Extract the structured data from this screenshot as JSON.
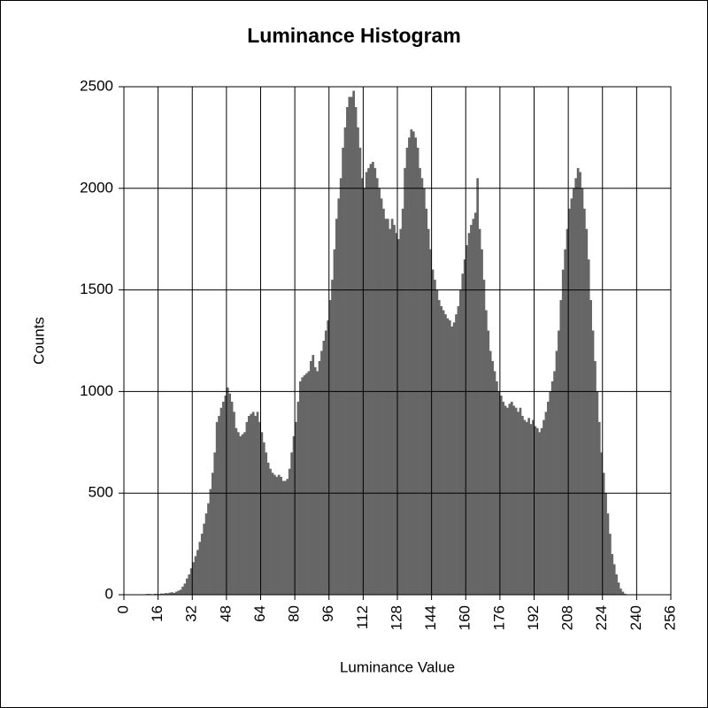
{
  "chart_data": {
    "type": "histogram",
    "title": "Luminance Histogram",
    "x_label": "Luminance Value",
    "y_label": "Counts",
    "bins": [
      0,
      1,
      2,
      3,
      4,
      5,
      6,
      7,
      8,
      9,
      10,
      11,
      12,
      13,
      14,
      15,
      16,
      17,
      18,
      19,
      20,
      21,
      22,
      23,
      24,
      25,
      26,
      27,
      28,
      29,
      30,
      31,
      32,
      33,
      34,
      35,
      36,
      37,
      38,
      39,
      40,
      41,
      42,
      43,
      44,
      45,
      46,
      47,
      48,
      49,
      50,
      51,
      52,
      53,
      54,
      55,
      56,
      57,
      58,
      59,
      60,
      61,
      62,
      63,
      64,
      65,
      66,
      67,
      68,
      69,
      70,
      71,
      72,
      73,
      74,
      75,
      76,
      77,
      78,
      79,
      80,
      81,
      82,
      83,
      84,
      85,
      86,
      87,
      88,
      89,
      90,
      91,
      92,
      93,
      94,
      95,
      96,
      97,
      98,
      99,
      100,
      101,
      102,
      103,
      104,
      105,
      106,
      107,
      108,
      109,
      110,
      111,
      112,
      113,
      114,
      115,
      116,
      117,
      118,
      119,
      120,
      121,
      122,
      123,
      124,
      125,
      126,
      127,
      128,
      129,
      130,
      131,
      132,
      133,
      134,
      135,
      136,
      137,
      138,
      139,
      140,
      141,
      142,
      143,
      144,
      145,
      146,
      147,
      148,
      149,
      150,
      151,
      152,
      153,
      154,
      155,
      156,
      157,
      158,
      159,
      160,
      161,
      162,
      163,
      164,
      165,
      166,
      167,
      168,
      169,
      170,
      171,
      172,
      173,
      174,
      175,
      176,
      177,
      178,
      179,
      180,
      181,
      182,
      183,
      184,
      185,
      186,
      187,
      188,
      189,
      190,
      191,
      192,
      193,
      194,
      195,
      196,
      197,
      198,
      199,
      200,
      201,
      202,
      203,
      204,
      205,
      206,
      207,
      208,
      209,
      210,
      211,
      212,
      213,
      214,
      215,
      216,
      217,
      218,
      219,
      220,
      221,
      222,
      223,
      224,
      225,
      226,
      227,
      228,
      229,
      230,
      231,
      232,
      233,
      234,
      235,
      236,
      237,
      238,
      239,
      240,
      241,
      242,
      243,
      244,
      245,
      246,
      247,
      248,
      249,
      250,
      251,
      252,
      253,
      254,
      255,
      256
    ],
    "values": [
      0,
      0,
      0,
      0,
      0,
      0,
      0,
      0,
      0,
      0,
      3,
      4,
      3,
      2,
      5,
      4,
      3,
      6,
      5,
      8,
      7,
      10,
      12,
      9,
      15,
      20,
      25,
      40,
      55,
      80,
      100,
      130,
      160,
      190,
      220,
      260,
      300,
      350,
      400,
      450,
      520,
      600,
      700,
      850,
      880,
      920,
      950,
      980,
      1020,
      990,
      950,
      900,
      820,
      800,
      780,
      790,
      800,
      850,
      880,
      890,
      900,
      880,
      900,
      850,
      800,
      750,
      700,
      650,
      620,
      600,
      590,
      580,
      590,
      580,
      560,
      560,
      570,
      620,
      700,
      780,
      850,
      950,
      1050,
      1070,
      1080,
      1090,
      1100,
      1150,
      1180,
      1120,
      1100,
      1150,
      1200,
      1250,
      1300,
      1350,
      1450,
      1550,
      1700,
      1850,
      1950,
      2050,
      2200,
      2300,
      2400,
      2450,
      2450,
      2480,
      2400,
      2300,
      2200,
      2050,
      2000,
      2080,
      2100,
      2120,
      2130,
      2100,
      2050,
      2000,
      1950,
      1900,
      1850,
      1850,
      1800,
      1850,
      1820,
      1780,
      1750,
      1800,
      1900,
      2100,
      2200,
      2250,
      2290,
      2280,
      2250,
      2200,
      2100,
      2050,
      2000,
      1900,
      1800,
      1700,
      1600,
      1550,
      1500,
      1450,
      1420,
      1400,
      1380,
      1360,
      1350,
      1320,
      1340,
      1380,
      1420,
      1500,
      1580,
      1650,
      1720,
      1780,
      1820,
      1850,
      1880,
      2050,
      1800,
      1700,
      1550,
      1400,
      1300,
      1200,
      1150,
      1100,
      1050,
      1000,
      980,
      950,
      930,
      920,
      940,
      950,
      930,
      920,
      900,
      920,
      880,
      860,
      850,
      870,
      840,
      860,
      830,
      820,
      800,
      820,
      860,
      900,
      950,
      1000,
      1050,
      1100,
      1200,
      1300,
      1450,
      1600,
      1700,
      1800,
      1900,
      1950,
      2000,
      2050,
      2100,
      2080,
      2000,
      1900,
      1800,
      1650,
      1450,
      1300,
      1150,
      1000,
      850,
      700,
      600,
      500,
      400,
      300,
      200,
      150,
      100,
      60,
      30,
      15,
      5,
      2,
      0,
      0,
      0,
      0,
      0,
      0,
      0,
      0,
      0,
      0,
      0,
      0,
      0,
      0,
      0,
      0,
      0,
      0,
      0,
      0
    ],
    "color": "#666666",
    "xlim": [
      0,
      256
    ],
    "xticks": [
      0,
      16,
      32,
      48,
      64,
      80,
      96,
      112,
      128,
      144,
      160,
      176,
      192,
      208,
      224,
      240,
      256
    ],
    "ylim": [
      0,
      2500
    ],
    "yticks": [
      0,
      500,
      1000,
      1500,
      2000,
      2500
    ],
    "grid": true
  }
}
